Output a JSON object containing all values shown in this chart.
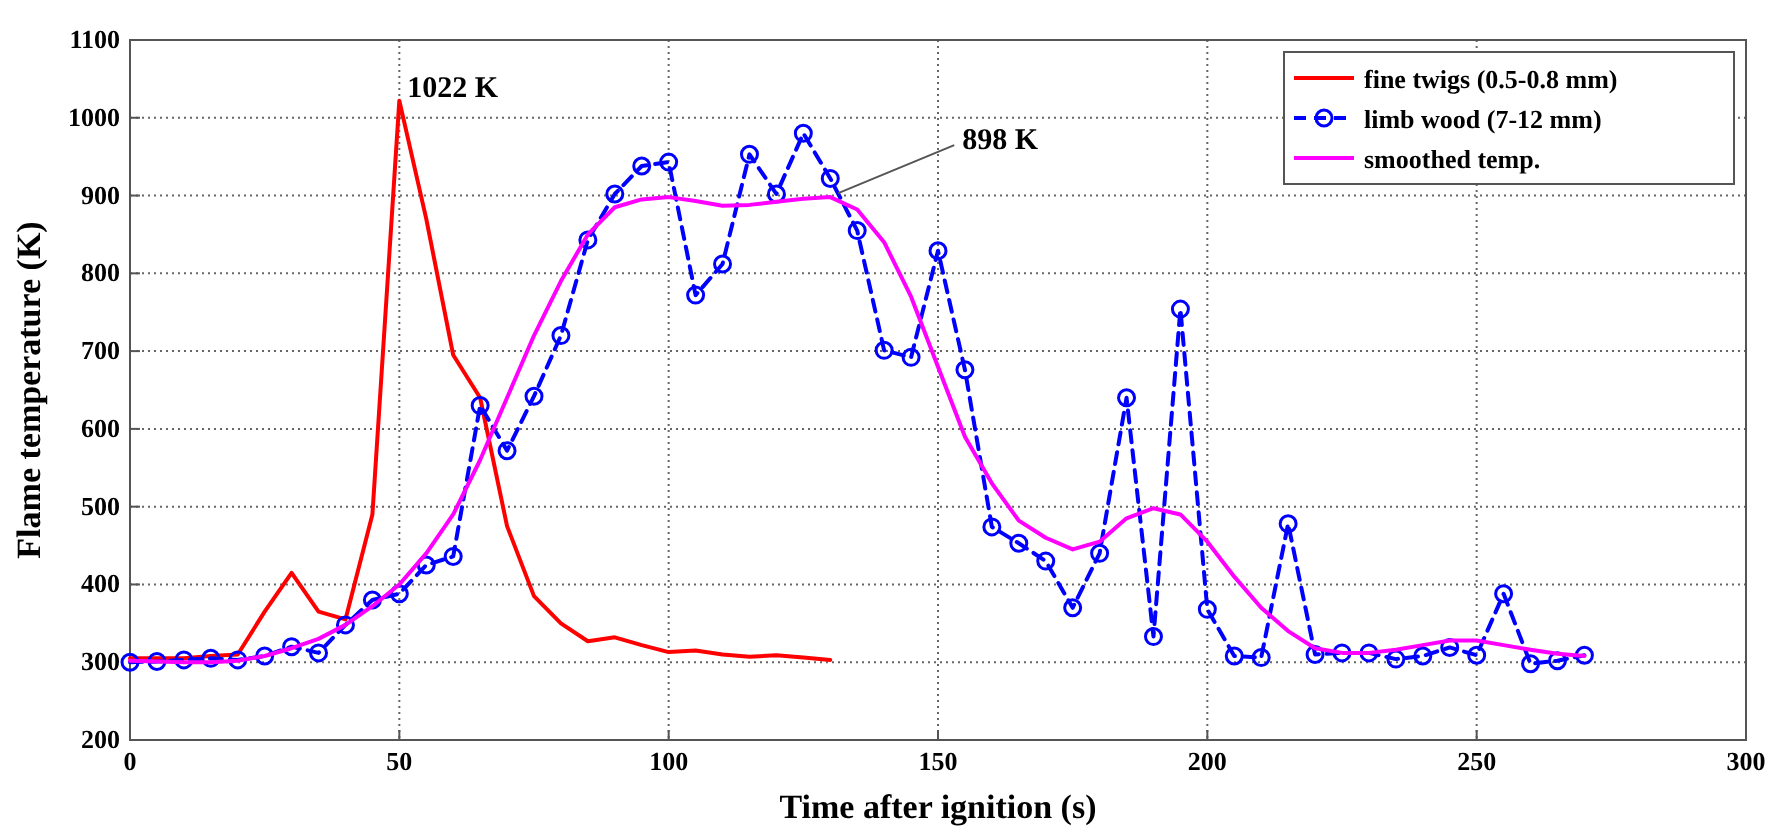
{
  "chart_data": {
    "type": "line",
    "xlabel": "Time after ignition (s)",
    "ylabel": "Flame temperature (K)",
    "xlim": [
      0,
      300
    ],
    "ylim": [
      200,
      1100
    ],
    "xticks": [
      0,
      50,
      100,
      150,
      200,
      250,
      300
    ],
    "yticks": [
      200,
      300,
      400,
      500,
      600,
      700,
      800,
      900,
      1000,
      1100
    ],
    "grid": true,
    "legend": "top right",
    "annotations": [
      {
        "text": "1022 K",
        "x": 50,
        "y": 1022
      },
      {
        "text": "898 K",
        "x": 130,
        "y": 898
      }
    ],
    "series": [
      {
        "name": "fine twigs (0.5-0.8 mm)",
        "color": "#ff0000",
        "marker": "none",
        "line_style": "solid",
        "x": [
          0,
          5,
          10,
          15,
          20,
          25,
          30,
          35,
          40,
          45,
          50,
          55,
          60,
          65,
          70,
          75,
          80,
          85,
          90,
          95,
          100,
          105,
          110,
          115,
          120,
          125,
          130
        ],
        "values": [
          305,
          305,
          305,
          308,
          310,
          365,
          415,
          365,
          355,
          490,
          1022,
          870,
          695,
          640,
          475,
          385,
          350,
          327,
          332,
          322,
          313,
          315,
          310,
          307,
          309,
          306,
          303
        ]
      },
      {
        "name": "limb wood (7-12 mm)",
        "color": "#0000ff",
        "marker": "circle",
        "line_style": "dashed",
        "x": [
          0,
          5,
          10,
          15,
          20,
          25,
          30,
          35,
          40,
          45,
          50,
          55,
          60,
          65,
          70,
          75,
          80,
          85,
          90,
          95,
          100,
          105,
          110,
          115,
          120,
          125,
          130,
          135,
          140,
          145,
          150,
          155,
          160,
          165,
          170,
          175,
          180,
          185,
          190,
          195,
          200,
          205,
          210,
          215,
          220,
          225,
          230,
          235,
          240,
          245,
          250,
          255,
          260,
          265,
          270
        ],
        "values": [
          300,
          301,
          303,
          305,
          303,
          308,
          320,
          312,
          348,
          380,
          388,
          425,
          436,
          630,
          572,
          642,
          720,
          843,
          902,
          938,
          943,
          772,
          812,
          953,
          902,
          980,
          922,
          855,
          701,
          692,
          829,
          676,
          474,
          453,
          430,
          370,
          440,
          640,
          333,
          754,
          368,
          308,
          306,
          478,
          310,
          312,
          312,
          304,
          308,
          319,
          309,
          388,
          298,
          302,
          309
        ]
      },
      {
        "name": "smoothed temp.",
        "color": "#ff00ff",
        "marker": "none",
        "line_style": "solid",
        "x": [
          0,
          5,
          10,
          15,
          20,
          25,
          30,
          35,
          40,
          45,
          50,
          55,
          60,
          65,
          70,
          75,
          80,
          85,
          90,
          95,
          100,
          105,
          110,
          115,
          120,
          125,
          130,
          135,
          140,
          145,
          150,
          155,
          160,
          165,
          170,
          175,
          180,
          185,
          190,
          195,
          200,
          205,
          210,
          215,
          220,
          225,
          230,
          235,
          240,
          245,
          250,
          255,
          260,
          265,
          270
        ],
        "values": [
          302,
          301,
          300,
          300,
          302,
          308,
          318,
          330,
          348,
          372,
          400,
          440,
          490,
          560,
          640,
          720,
          790,
          850,
          885,
          895,
          898,
          893,
          887,
          888,
          892,
          896,
          898,
          882,
          840,
          770,
          680,
          590,
          530,
          482,
          460,
          445,
          455,
          485,
          498,
          490,
          455,
          410,
          370,
          340,
          318,
          312,
          312,
          316,
          322,
          328,
          328,
          322,
          316,
          311,
          308
        ]
      }
    ]
  }
}
